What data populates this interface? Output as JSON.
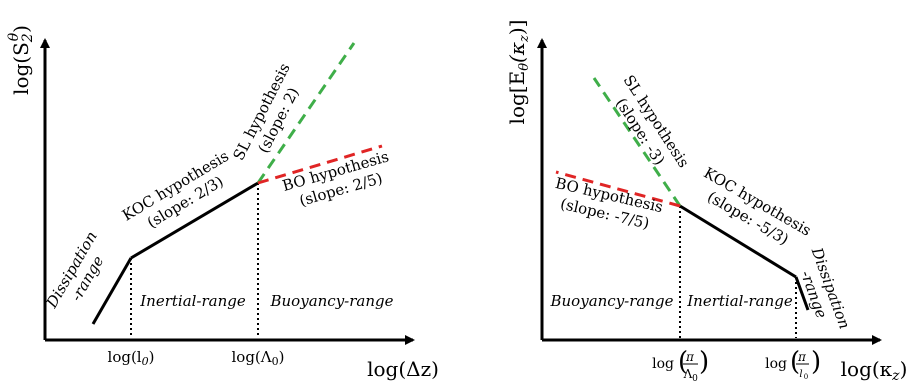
{
  "left": {
    "y_axis_label": "log(S",
    "y_axis_sub": "2",
    "y_axis_sup": "θ",
    "y_axis_close": ")",
    "x_axis_label": "log(Δz)",
    "tick_l0": "log(l",
    "tick_l0_sub": "0",
    "tick_l0_close": ")",
    "tick_lambda0": "log(Λ",
    "tick_lambda0_sub": "0",
    "tick_lambda0_close": ")",
    "dissipation_line1": "Dissipation",
    "dissipation_line2": "-range",
    "inertial_range": "Inertial-range",
    "buoyancy_range": "Buoyancy-range",
    "koc_line1": "KOC hypothesis",
    "koc_line2": "(slope: 2/3)",
    "sl_line1": "SL hypothesis",
    "sl_line2": "(slope: 2)",
    "bo_line1": "BO hypothesis",
    "bo_line2": "(slope: 2/5)"
  },
  "right": {
    "y_axis_label": "log[E",
    "y_axis_sub": "θ",
    "y_axis_mid": "(κ",
    "y_axis_mid_sub": "z",
    "y_axis_close": ")]",
    "x_axis_label": "log(κ",
    "x_axis_sub": "z",
    "x_axis_close": ")",
    "tick1_prefix": "log",
    "tick1_num": "π",
    "tick1_den": "Λ",
    "tick1_den_sub": "0",
    "tick2_prefix": "log",
    "tick2_num": "π",
    "tick2_den": "l",
    "tick2_den_sub": "0",
    "buoyancy_range": "Buoyancy-range",
    "inertial_range": "Inertial-range",
    "dissipation_line1": "Dissipation",
    "dissipation_line2": "-range",
    "bo_line1": "BO hypothesis",
    "bo_line2": "(slope: -7/5)",
    "koc_line1": "KOC hypothesis",
    "koc_line2": "(slope: -5/3)",
    "sl_line1": "SL hypothesis",
    "sl_line2": "(slope: -3)"
  },
  "colors": {
    "sl_hypothesis": "#3fae49",
    "bo_hypothesis": "#e02525",
    "axes": "#000000"
  }
}
